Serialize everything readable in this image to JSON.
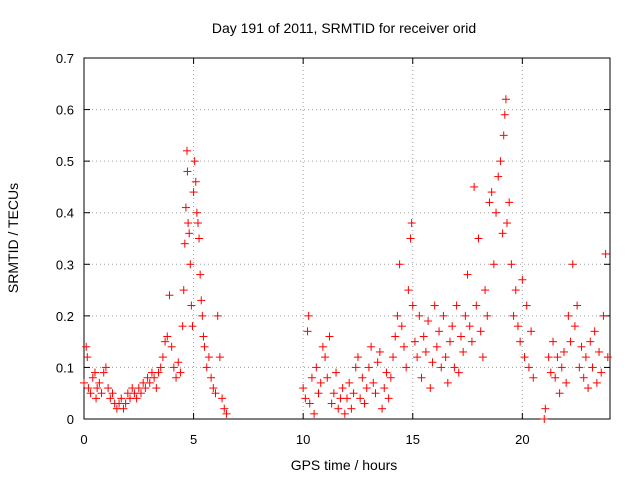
{
  "chart_data": {
    "type": "scatter",
    "title": "Day 191 of 2011, SRMTID for receiver orid",
    "xlabel": "GPS time / hours",
    "ylabel": "SRMTID / TECUs",
    "xlim": [
      0,
      24
    ],
    "ylim": [
      0,
      0.7
    ],
    "xticks": [
      0,
      5,
      10,
      15,
      20
    ],
    "xtick_labels": [
      "0",
      "5",
      "10",
      "15",
      "20"
    ],
    "yticks": [
      0,
      0.1,
      0.2,
      0.3,
      0.4,
      0.5,
      0.6,
      0.7
    ],
    "ytick_labels": [
      "0",
      "0.1",
      "0.2",
      "0.3",
      "0.4",
      "0.5",
      "0.6",
      "0.7"
    ],
    "grid": true,
    "marker": "+",
    "color": "#ff0000",
    "series": [
      {
        "name": "SRMTID",
        "points": [
          [
            0.0,
            0.07
          ],
          [
            0.1,
            0.14
          ],
          [
            0.15,
            0.12
          ],
          [
            0.2,
            0.06
          ],
          [
            0.3,
            0.05
          ],
          [
            0.4,
            0.08
          ],
          [
            0.5,
            0.09
          ],
          [
            0.55,
            0.04
          ],
          [
            0.6,
            0.06
          ],
          [
            0.7,
            0.07
          ],
          [
            0.8,
            0.05
          ],
          [
            0.9,
            0.09
          ],
          [
            1.0,
            0.1
          ],
          [
            1.1,
            0.06
          ],
          [
            1.2,
            0.04
          ],
          [
            1.3,
            0.05
          ],
          [
            1.4,
            0.03
          ],
          [
            1.5,
            0.02
          ],
          [
            1.6,
            0.03
          ],
          [
            1.7,
            0.04
          ],
          [
            1.8,
            0.02
          ],
          [
            1.9,
            0.03
          ],
          [
            2.0,
            0.05
          ],
          [
            2.1,
            0.04
          ],
          [
            2.2,
            0.06
          ],
          [
            2.3,
            0.05
          ],
          [
            2.4,
            0.04
          ],
          [
            2.5,
            0.06
          ],
          [
            2.6,
            0.05
          ],
          [
            2.7,
            0.07
          ],
          [
            2.8,
            0.06
          ],
          [
            2.9,
            0.08
          ],
          [
            3.0,
            0.07
          ],
          [
            3.1,
            0.09
          ],
          [
            3.2,
            0.08
          ],
          [
            3.3,
            0.06
          ],
          [
            3.4,
            0.09
          ],
          [
            3.5,
            0.1
          ],
          [
            3.6,
            0.12
          ],
          [
            3.7,
            0.15
          ],
          [
            3.8,
            0.16
          ],
          [
            3.9,
            0.24
          ],
          [
            4.0,
            0.14
          ],
          [
            4.1,
            0.1
          ],
          [
            4.2,
            0.08
          ],
          [
            4.3,
            0.11
          ],
          [
            4.4,
            0.09
          ],
          [
            4.5,
            0.18
          ],
          [
            4.55,
            0.25
          ],
          [
            4.6,
            0.34
          ],
          [
            4.65,
            0.41
          ],
          [
            4.7,
            0.52
          ],
          [
            4.72,
            0.48
          ],
          [
            4.75,
            0.38
          ],
          [
            4.8,
            0.36
          ],
          [
            4.85,
            0.3
          ],
          [
            4.9,
            0.22
          ],
          [
            4.95,
            0.18
          ],
          [
            5.0,
            0.44
          ],
          [
            5.05,
            0.5
          ],
          [
            5.1,
            0.46
          ],
          [
            5.15,
            0.4
          ],
          [
            5.2,
            0.38
          ],
          [
            5.25,
            0.35
          ],
          [
            5.3,
            0.28
          ],
          [
            5.35,
            0.23
          ],
          [
            5.4,
            0.2
          ],
          [
            5.45,
            0.16
          ],
          [
            5.5,
            0.14
          ],
          [
            5.6,
            0.1
          ],
          [
            5.7,
            0.12
          ],
          [
            5.8,
            0.08
          ],
          [
            5.9,
            0.06
          ],
          [
            6.0,
            0.05
          ],
          [
            6.1,
            0.2
          ],
          [
            6.2,
            0.12
          ],
          [
            6.3,
            0.04
          ],
          [
            6.4,
            0.02
          ],
          [
            6.5,
            0.01
          ],
          [
            10.0,
            0.06
          ],
          [
            10.1,
            0.04
          ],
          [
            10.2,
            0.17
          ],
          [
            10.25,
            0.2
          ],
          [
            10.3,
            0.03
          ],
          [
            10.4,
            0.08
          ],
          [
            10.5,
            0.01
          ],
          [
            10.6,
            0.1
          ],
          [
            10.7,
            0.05
          ],
          [
            10.8,
            0.07
          ],
          [
            10.9,
            0.14
          ],
          [
            11.0,
            0.12
          ],
          [
            11.1,
            0.08
          ],
          [
            11.2,
            0.16
          ],
          [
            11.3,
            0.03
          ],
          [
            11.4,
            0.05
          ],
          [
            11.5,
            0.09
          ],
          [
            11.6,
            0.02
          ],
          [
            11.7,
            0.04
          ],
          [
            11.8,
            0.06
          ],
          [
            11.9,
            0.01
          ],
          [
            12.0,
            0.04
          ],
          [
            12.1,
            0.07
          ],
          [
            12.2,
            0.02
          ],
          [
            12.3,
            0.05
          ],
          [
            12.4,
            0.1
          ],
          [
            12.5,
            0.12
          ],
          [
            12.6,
            0.04
          ],
          [
            12.7,
            0.08
          ],
          [
            12.8,
            0.03
          ],
          [
            12.9,
            0.06
          ],
          [
            13.0,
            0.1
          ],
          [
            13.1,
            0.14
          ],
          [
            13.2,
            0.07
          ],
          [
            13.3,
            0.05
          ],
          [
            13.4,
            0.11
          ],
          [
            13.5,
            0.13
          ],
          [
            13.6,
            0.02
          ],
          [
            13.7,
            0.06
          ],
          [
            13.8,
            0.09
          ],
          [
            13.9,
            0.04
          ],
          [
            14.0,
            0.08
          ],
          [
            14.1,
            0.12
          ],
          [
            14.2,
            0.16
          ],
          [
            14.3,
            0.2
          ],
          [
            14.4,
            0.3
          ],
          [
            14.5,
            0.18
          ],
          [
            14.6,
            0.14
          ],
          [
            14.7,
            0.1
          ],
          [
            14.8,
            0.25
          ],
          [
            14.9,
            0.35
          ],
          [
            14.95,
            0.38
          ],
          [
            15.0,
            0.22
          ],
          [
            15.1,
            0.15
          ],
          [
            15.2,
            0.12
          ],
          [
            15.3,
            0.2
          ],
          [
            15.4,
            0.08
          ],
          [
            15.5,
            0.16
          ],
          [
            15.6,
            0.13
          ],
          [
            15.7,
            0.19
          ],
          [
            15.8,
            0.06
          ],
          [
            15.9,
            0.11
          ],
          [
            16.0,
            0.22
          ],
          [
            16.1,
            0.14
          ],
          [
            16.2,
            0.17
          ],
          [
            16.3,
            0.1
          ],
          [
            16.4,
            0.2
          ],
          [
            16.5,
            0.12
          ],
          [
            16.6,
            0.07
          ],
          [
            16.7,
            0.15
          ],
          [
            16.8,
            0.18
          ],
          [
            16.9,
            0.1
          ],
          [
            17.0,
            0.22
          ],
          [
            17.1,
            0.09
          ],
          [
            17.2,
            0.16
          ],
          [
            17.3,
            0.13
          ],
          [
            17.4,
            0.2
          ],
          [
            17.5,
            0.28
          ],
          [
            17.6,
            0.18
          ],
          [
            17.7,
            0.15
          ],
          [
            17.8,
            0.45
          ],
          [
            17.9,
            0.22
          ],
          [
            18.0,
            0.35
          ],
          [
            18.1,
            0.17
          ],
          [
            18.2,
            0.12
          ],
          [
            18.3,
            0.25
          ],
          [
            18.4,
            0.2
          ],
          [
            18.5,
            0.42
          ],
          [
            18.6,
            0.44
          ],
          [
            18.7,
            0.3
          ],
          [
            18.8,
            0.4
          ],
          [
            18.9,
            0.47
          ],
          [
            19.0,
            0.5
          ],
          [
            19.1,
            0.36
          ],
          [
            19.15,
            0.55
          ],
          [
            19.2,
            0.59
          ],
          [
            19.25,
            0.62
          ],
          [
            19.3,
            0.38
          ],
          [
            19.4,
            0.42
          ],
          [
            19.5,
            0.3
          ],
          [
            19.6,
            0.2
          ],
          [
            19.7,
            0.25
          ],
          [
            19.8,
            0.18
          ],
          [
            19.9,
            0.15
          ],
          [
            20.0,
            0.27
          ],
          [
            20.1,
            0.12
          ],
          [
            20.2,
            0.22
          ],
          [
            20.3,
            0.1
          ],
          [
            20.4,
            0.17
          ],
          [
            20.5,
            0.08
          ],
          [
            21.0,
            0.0
          ],
          [
            21.05,
            0.02
          ],
          [
            21.2,
            0.12
          ],
          [
            21.3,
            0.09
          ],
          [
            21.4,
            0.15
          ],
          [
            21.5,
            0.08
          ],
          [
            21.6,
            0.12
          ],
          [
            21.7,
            0.05
          ],
          [
            21.8,
            0.1
          ],
          [
            21.9,
            0.13
          ],
          [
            22.0,
            0.07
          ],
          [
            22.1,
            0.2
          ],
          [
            22.2,
            0.15
          ],
          [
            22.3,
            0.3
          ],
          [
            22.4,
            0.18
          ],
          [
            22.5,
            0.22
          ],
          [
            22.6,
            0.1
          ],
          [
            22.7,
            0.14
          ],
          [
            22.8,
            0.08
          ],
          [
            22.9,
            0.12
          ],
          [
            23.0,
            0.06
          ],
          [
            23.1,
            0.15
          ],
          [
            23.2,
            0.1
          ],
          [
            23.3,
            0.17
          ],
          [
            23.4,
            0.07
          ],
          [
            23.5,
            0.13
          ],
          [
            23.6,
            0.09
          ],
          [
            23.7,
            0.2
          ],
          [
            23.8,
            0.32
          ],
          [
            23.9,
            0.12
          ]
        ]
      }
    ]
  }
}
